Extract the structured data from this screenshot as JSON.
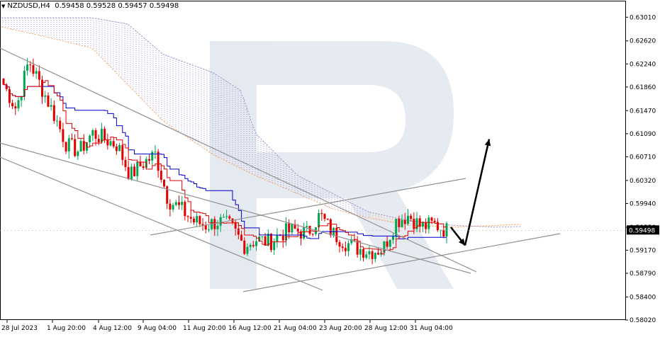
{
  "header": {
    "symbol": "NZDUSD,H4",
    "open": "0.59458",
    "high": "0.59528",
    "low": "0.59457",
    "close": "0.59498"
  },
  "current_price": "0.59498",
  "y_ticks": [
    "0.63010",
    "0.62620",
    "0.62240",
    "0.61860",
    "0.61470",
    "0.61090",
    "0.60710",
    "0.60320",
    "0.59940",
    "0.59550",
    "0.59170",
    "0.58790",
    "0.58400",
    "0.58020"
  ],
  "x_ticks": [
    "28 Jul 2023",
    "1 Aug 20:00",
    "4 Aug 12:00",
    "9 Aug 04:00",
    "11 Aug 20:00",
    "16 Aug 12:00",
    "21 Aug 04:00",
    "23 Aug 20:00",
    "28 Aug 12:00",
    "31 Aug 04:00"
  ],
  "colors": {
    "bull_candle": "#00a651",
    "bear_candle": "#e00000",
    "kijun": "#0000cc",
    "tenkan": "#e00000",
    "cloud_bear": "#f4a460",
    "cloud_bull": "#9f8fd0",
    "trendline": "#909090",
    "arrow": "#000000",
    "watermark": "#dde3ec",
    "price_box": "#000000"
  },
  "chart_data": {
    "type": "candlestick",
    "title": "NZDUSD,H4",
    "ylim": [
      0.5802,
      0.632
    ],
    "x": [
      "28 Jul 2023",
      "1 Aug 20:00",
      "4 Aug 12:00",
      "9 Aug 04:00",
      "11 Aug 20:00",
      "16 Aug 12:00",
      "21 Aug 04:00",
      "23 Aug 20:00",
      "28 Aug 12:00",
      "31 Aug 04:00"
    ],
    "indicators": [
      "Ichimoku Kinko Hyo"
    ],
    "close_path": [
      0.619,
      0.615,
      0.623,
      0.6185,
      0.614,
      0.609,
      0.608,
      0.611,
      0.61,
      0.609,
      0.604,
      0.606,
      0.6075,
      0.6,
      0.5985,
      0.5965,
      0.5958,
      0.5965,
      0.5955,
      0.5925,
      0.5935,
      0.593,
      0.5945,
      0.595,
      0.5945,
      0.5975,
      0.5945,
      0.593,
      0.592,
      0.5915,
      0.592,
      0.5965,
      0.5975,
      0.5955,
      0.596,
      0.595
    ],
    "forecast_arrows": [
      {
        "from": 0.5955,
        "to": 0.5925
      },
      {
        "from": 0.5925,
        "to": 0.61
      }
    ],
    "grid": false,
    "legend": "none"
  }
}
